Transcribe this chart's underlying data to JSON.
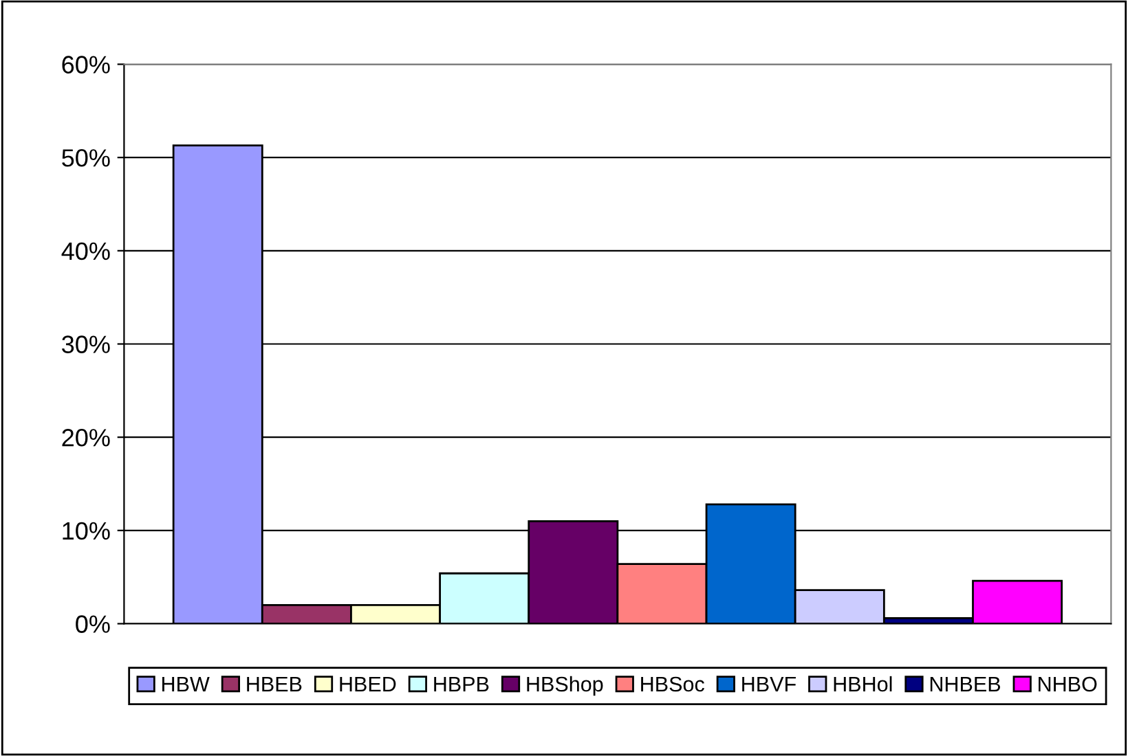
{
  "chart_data": {
    "type": "bar",
    "categories": [
      null
    ],
    "series": [
      {
        "name": "HBW",
        "color": "#9999ff",
        "values": [
          51.3
        ]
      },
      {
        "name": "HBEB",
        "color": "#993366",
        "values": [
          2.0
        ]
      },
      {
        "name": "HBED",
        "color": "#ffffcc",
        "values": [
          2.0
        ]
      },
      {
        "name": "HBPB",
        "color": "#ccffff",
        "values": [
          5.4
        ]
      },
      {
        "name": "HBShop",
        "color": "#660066",
        "values": [
          11.0
        ]
      },
      {
        "name": "HBSoc",
        "color": "#ff8080",
        "values": [
          6.4
        ]
      },
      {
        "name": "HBVF",
        "color": "#0066cc",
        "values": [
          12.8
        ]
      },
      {
        "name": "HBHol",
        "color": "#ccccff",
        "values": [
          3.6
        ]
      },
      {
        "name": "NHBEB",
        "color": "#000080",
        "values": [
          0.6
        ]
      },
      {
        "name": "NHBO",
        "color": "#ff00ff",
        "values": [
          4.6
        ]
      }
    ],
    "ylim": [
      0,
      60
    ],
    "yticks": [
      {
        "value": 0,
        "label": "0%"
      },
      {
        "value": 10,
        "label": "10%"
      },
      {
        "value": 20,
        "label": "20%"
      },
      {
        "value": 30,
        "label": "30%"
      },
      {
        "value": 40,
        "label": "40%"
      },
      {
        "value": 50,
        "label": "50%"
      },
      {
        "value": 60,
        "label": "60%"
      }
    ],
    "grid": "y",
    "legend": "bottom"
  }
}
